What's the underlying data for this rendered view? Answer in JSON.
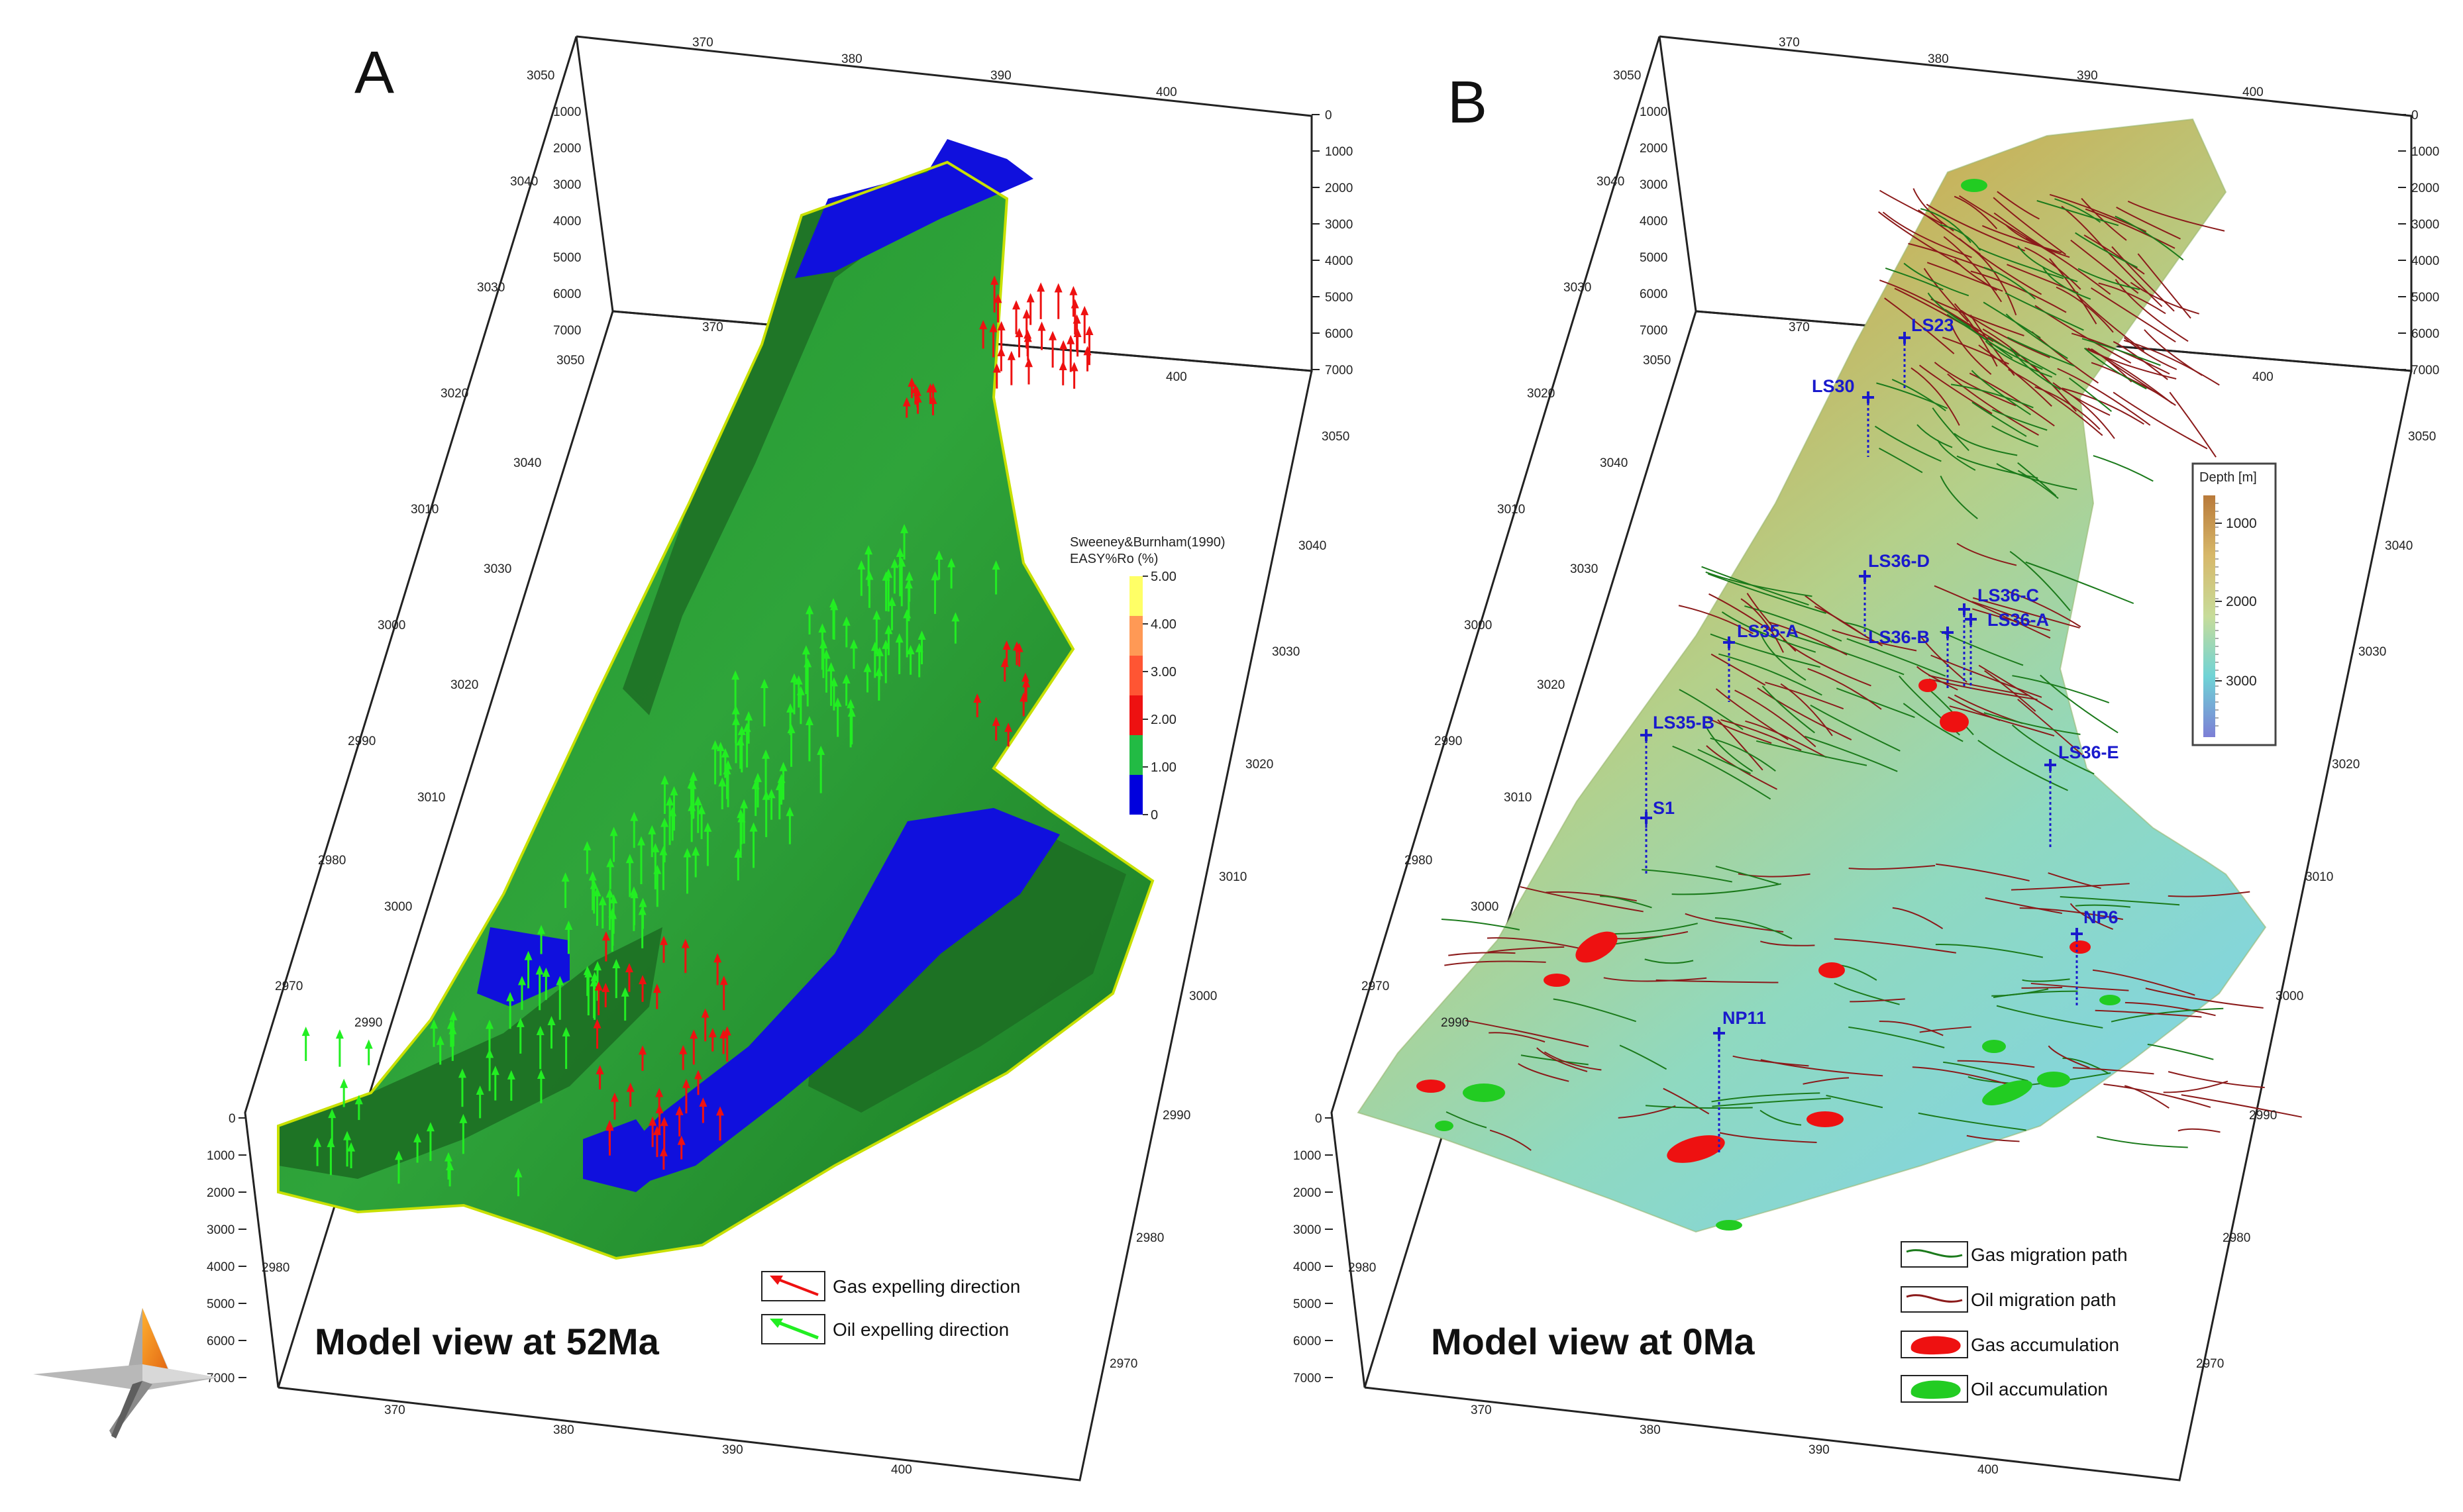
{
  "panels": [
    {
      "id": "A",
      "letter": "A",
      "caption": "Model view at 52Ma",
      "colorbar": {
        "title_line1": "Sweeney&Burnham(1990)",
        "title_line2": "EASY%Ro (%)",
        "ticks": [
          "5.00",
          "4.00",
          "3.00",
          "2.00",
          "1.00",
          "0"
        ],
        "colors": [
          "#ffff66",
          "#ff9955",
          "#ff5533",
          "#ee1111",
          "#22bb44",
          "#0000dd"
        ]
      },
      "legend": [
        {
          "label": "Gas expelling direction",
          "color": "#ee1111",
          "icon": "red-arrow-icon"
        },
        {
          "label": "Oil expelling direction",
          "color": "#22ee22",
          "icon": "green-arrow-icon"
        }
      ],
      "axes": {
        "top_ticks": [
          "370",
          "380",
          "390",
          "400"
        ],
        "bottom_ticks": [
          "370",
          "380",
          "390",
          "400"
        ],
        "left_ticks": [
          "3050",
          "3040",
          "3030",
          "3020",
          "3010",
          "3000",
          "2990",
          "2980",
          "2970"
        ],
        "right_ticks": [
          "3050",
          "3040",
          "3030",
          "3020",
          "3010",
          "3000",
          "2990",
          "2980",
          "2970"
        ],
        "depth_ticks": [
          "0",
          "1000",
          "2000",
          "3000",
          "4000",
          "5000",
          "6000",
          "7000"
        ]
      }
    },
    {
      "id": "B",
      "letter": "B",
      "caption": "Model view at 0Ma",
      "colorbar": {
        "title": "Depth [m]",
        "ticks": [
          "1000",
          "2000",
          "3000"
        ]
      },
      "wells": [
        "LS23",
        "LS30",
        "LS36-D",
        "LS36-C",
        "LS35-A",
        "LS36-B",
        "LS36-A",
        "LS35-B",
        "LS36-E",
        "S1",
        "NP6",
        "NP11"
      ],
      "legend": [
        {
          "label": "Gas migration path",
          "color": "#1b7a1b",
          "icon": "green-line-icon"
        },
        {
          "label": "Oil migration path",
          "color": "#8b1a1a",
          "icon": "red-line-icon"
        },
        {
          "label": "Gas accumulation",
          "color": "#ee1111",
          "icon": "red-blob-icon"
        },
        {
          "label": "Oil accumulation",
          "color": "#22cc22",
          "icon": "green-blob-icon"
        }
      ],
      "axes": {
        "top_ticks": [
          "370",
          "380",
          "390",
          "400"
        ],
        "bottom_ticks": [
          "370",
          "380",
          "390",
          "400"
        ],
        "left_ticks": [
          "3050",
          "3040",
          "3030",
          "3020",
          "3010",
          "3000",
          "2990",
          "2980",
          "2970"
        ],
        "right_ticks": [
          "3050",
          "3040",
          "3030",
          "3020",
          "3010",
          "3000",
          "2990",
          "2980",
          "2970"
        ],
        "depth_ticks": [
          "0",
          "1000",
          "2000",
          "3000",
          "4000",
          "5000",
          "6000",
          "7000"
        ]
      }
    }
  ]
}
